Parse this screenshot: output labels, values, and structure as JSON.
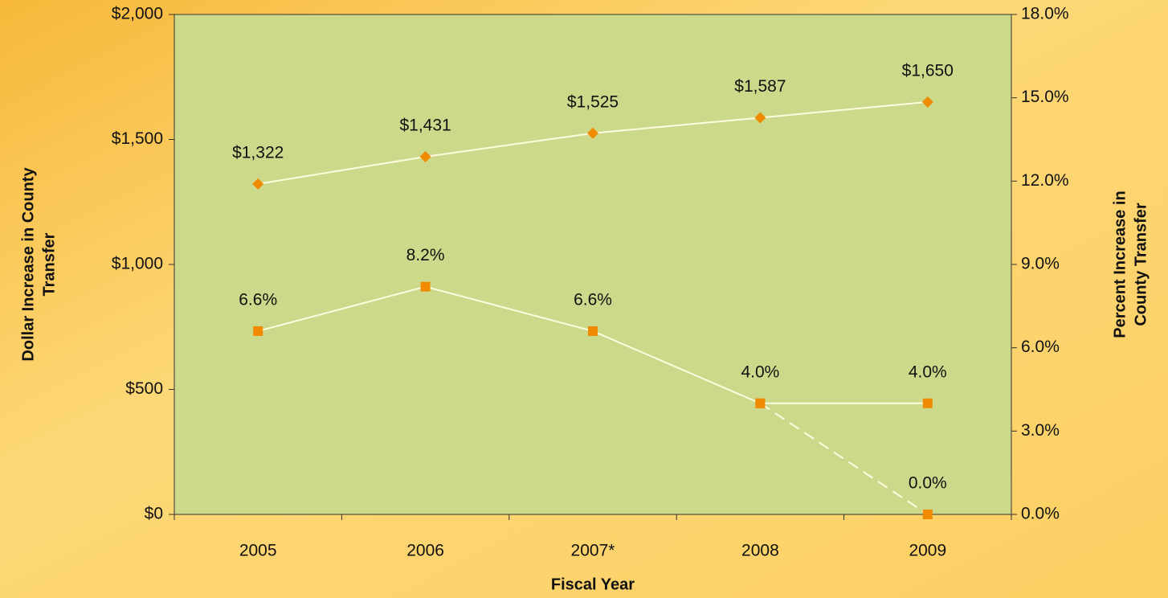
{
  "chart_data": {
    "type": "line",
    "categories": [
      "2005",
      "2006",
      "2007*",
      "2008",
      "2009"
    ],
    "xlabel": "Fiscal Year",
    "ylabel": [
      "Dollar Increase in County",
      "Transfer"
    ],
    "y2label": [
      "Percent Increase in",
      "County Transfer"
    ],
    "ylim": [
      0,
      2000
    ],
    "yticks": [
      {
        "value": 0,
        "label": "$0"
      },
      {
        "value": 500,
        "label": "$500"
      },
      {
        "value": 1000,
        "label": "$1,000"
      },
      {
        "value": 1500,
        "label": "$1,500"
      },
      {
        "value": 2000,
        "label": "$2,000"
      }
    ],
    "y2lim": [
      0,
      18
    ],
    "y2ticks": [
      {
        "value": 0,
        "label": "0.0%"
      },
      {
        "value": 3,
        "label": "3.0%"
      },
      {
        "value": 6,
        "label": "6.0%"
      },
      {
        "value": 9,
        "label": "9.0%"
      },
      {
        "value": 12,
        "label": "12.0%"
      },
      {
        "value": 15,
        "label": "15.0%"
      },
      {
        "value": 18,
        "label": "18.0%"
      }
    ],
    "plot_color": "#cdd98a",
    "series": [
      {
        "values": [
          1322,
          1431,
          1525,
          1587,
          1650
        ],
        "value_labels": [
          "$1,322",
          "$1,431",
          "$1,525",
          "$1,587",
          "$1,650"
        ],
        "color": "#f08a00",
        "line_color": "#fffbe0",
        "marker": "diamond"
      },
      {
        "values": [
          6.6,
          8.2,
          6.6,
          4.0,
          4.0
        ],
        "value_labels": [
          "6.6%",
          "8.2%",
          "6.6%",
          "4.0%",
          "4.0%"
        ],
        "color": "#f08a00",
        "line_color": "#fffbe0",
        "marker": "square",
        "axis": "y2"
      },
      {
        "values": [
          null,
          null,
          null,
          4.0,
          0.0
        ],
        "value_labels": [
          null,
          null,
          null,
          null,
          "0.0%"
        ],
        "color": "#f08a00",
        "line_color": "#fffbe0",
        "marker": "square",
        "axis": "y2",
        "dashed": true
      }
    ]
  }
}
